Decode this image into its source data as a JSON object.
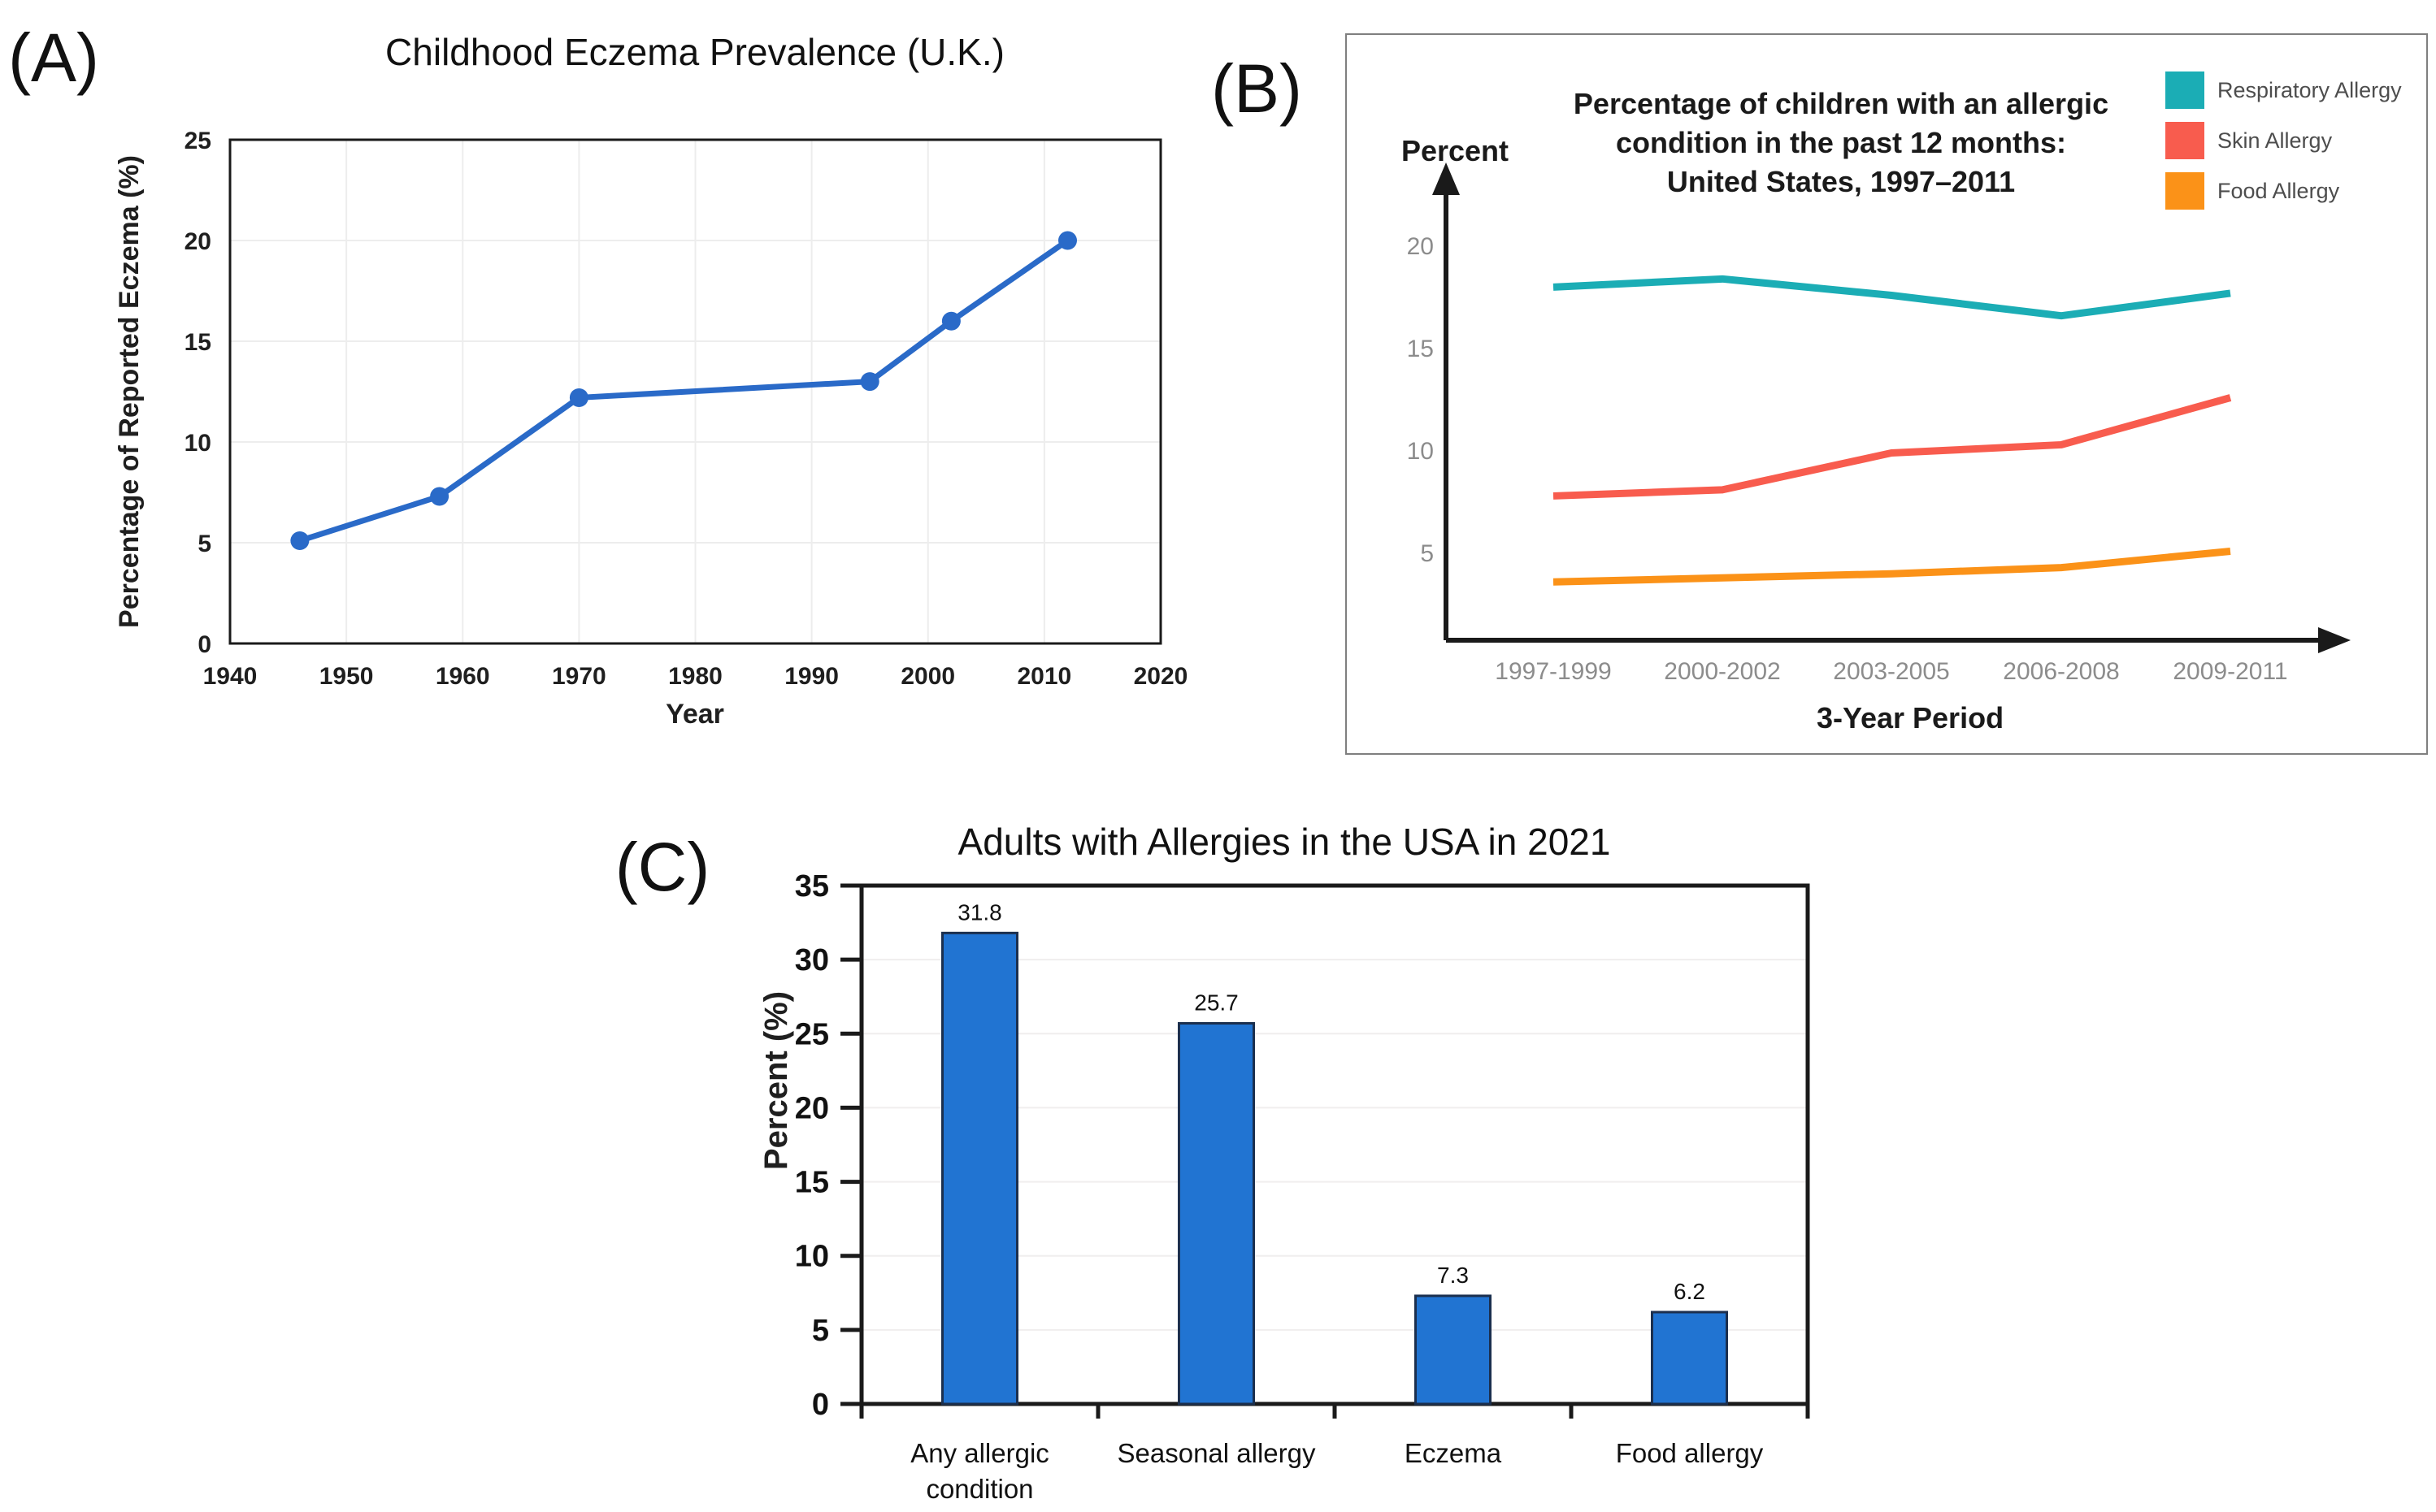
{
  "figure": {
    "background": "#ffffff",
    "panels": [
      {
        "id": "A",
        "label": "(A)"
      },
      {
        "id": "B",
        "label": "(B)"
      },
      {
        "id": "C",
        "label": "(C)"
      }
    ]
  },
  "chart_data": [
    {
      "id": "A",
      "type": "line",
      "title": "Childhood Eczema Prevalence (U.K.)",
      "xlabel": "Year",
      "ylabel": "Percentage of Reported Eczema (%)",
      "xlim": [
        1940,
        2020
      ],
      "ylim": [
        0,
        25
      ],
      "xticks": [
        1940,
        1950,
        1960,
        1970,
        1980,
        1990,
        2000,
        2010,
        2020
      ],
      "yticks": [
        0,
        5,
        10,
        15,
        20,
        25
      ],
      "grid": true,
      "legend_position": "none",
      "series": [
        {
          "name": "Reported eczema",
          "color": "#2a6ac8",
          "marker": "circle",
          "x": [
            1946,
            1958,
            1970,
            1995,
            2002,
            2012
          ],
          "y": [
            5.1,
            7.3,
            12.2,
            13.0,
            16.0,
            20.0
          ]
        }
      ]
    },
    {
      "id": "B",
      "type": "line",
      "title": "Percentage of children with an allergic condition in the past 12 months: United States, 1997–2011",
      "title_lines": [
        "Percentage of children with an allergic",
        "condition in the past 12 months:",
        "United States, 1997–2011"
      ],
      "xlabel": "3-Year Period",
      "ylabel": "Percent",
      "categories": [
        "1997-1999",
        "2000-2002",
        "2003-2005",
        "2006-2008",
        "2009-2011"
      ],
      "yticks": [
        5,
        10,
        15,
        20
      ],
      "ylim": [
        0,
        22
      ],
      "grid": false,
      "legend_position": "top-right",
      "series": [
        {
          "name": "Respiratory Allergy",
          "color": "#1badb5",
          "values": [
            18.0,
            18.4,
            17.6,
            16.6,
            17.7
          ]
        },
        {
          "name": "Skin Allergy",
          "color": "#f85c4e",
          "values": [
            7.8,
            8.1,
            9.9,
            10.3,
            12.6
          ]
        },
        {
          "name": "Food Allergy",
          "color": "#fb9218",
          "values": [
            3.6,
            3.8,
            4.0,
            4.3,
            5.1
          ]
        }
      ]
    },
    {
      "id": "C",
      "type": "bar",
      "title": "Adults with Allergies in the USA in 2021",
      "ylabel": "Percent (%)",
      "categories": [
        "Any allergic\ncondition",
        "Seasonal allergy",
        "Eczema",
        "Food allergy"
      ],
      "values": [
        31.8,
        25.7,
        7.3,
        6.2
      ],
      "value_labels": [
        "31.8",
        "25.7",
        "7.3",
        "6.2"
      ],
      "bar_color": "#2174d2",
      "bar_border": "#1b2f4e",
      "ylim": [
        0,
        35
      ],
      "yticks": [
        0,
        5,
        10,
        15,
        20,
        25,
        30,
        35
      ],
      "grid": true
    }
  ]
}
